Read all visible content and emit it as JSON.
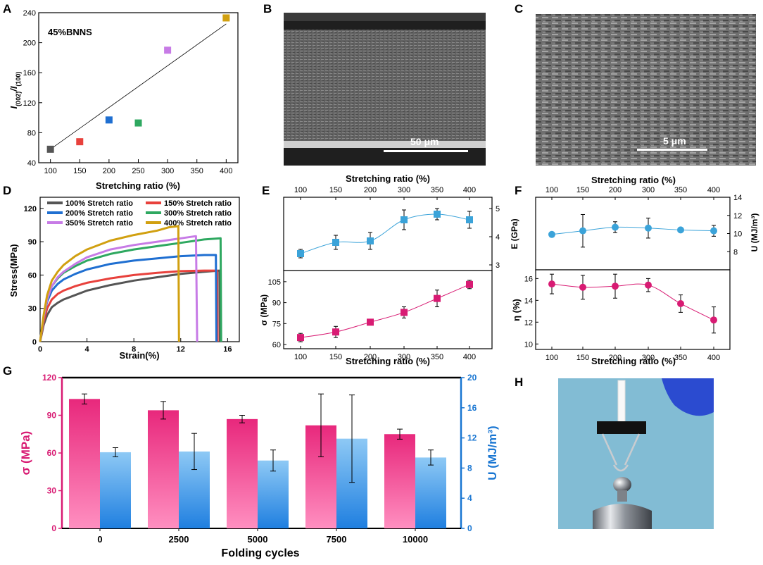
{
  "panel_labels": {
    "A": "A",
    "B": "B",
    "C": "C",
    "D": "D",
    "E": "E",
    "F": "F",
    "G": "G",
    "H": "H"
  },
  "colors": {
    "c100": "#555555",
    "c150": "#e8413c",
    "c200": "#1f6fd1",
    "c250": "#2ea860",
    "c300": "#2ea860",
    "c350": "#c77be6",
    "c400": "#d1a010",
    "e_top": "#3ba3d9",
    "pink": "#d81b73",
    "g_pink": "#e8287c",
    "g_blue": "#1f8fe0",
    "g_blue_axis": "#1976d2"
  },
  "sem_b": {
    "scale_label": "50 μm"
  },
  "sem_c": {
    "scale_label": "5 μm"
  },
  "photo_h": {
    "description_icon": "weight-hanging-photo"
  },
  "chart_data": [
    {
      "id": "A",
      "type": "scatter",
      "annotation": "45%BNNS",
      "xlabel": "Stretching ratio (%)",
      "ylabel": "I(002)/I(100)",
      "ylabel_main": "I",
      "ylabel_sub1": "(002)",
      "ylabel_slash": "/I",
      "ylabel_sub2": "(100)",
      "xlim": [
        80,
        420
      ],
      "ylim": [
        40,
        240
      ],
      "xticks": [
        100,
        150,
        200,
        250,
        300,
        350,
        400
      ],
      "xtick_labels": [
        "100",
        "150",
        "200",
        "250",
        "300",
        "350",
        "400"
      ],
      "yticks": [
        40,
        80,
        120,
        160,
        200,
        240
      ],
      "ytick_labels": [
        "40",
        "80",
        "120",
        "160",
        "200",
        "240"
      ],
      "points": [
        {
          "x": 100,
          "y": 58,
          "color": "#555555"
        },
        {
          "x": 150,
          "y": 68,
          "color": "#e8413c"
        },
        {
          "x": 200,
          "y": 97,
          "color": "#1f6fd1"
        },
        {
          "x": 250,
          "y": 93,
          "color": "#2ea860"
        },
        {
          "x": 300,
          "y": 190,
          "color": "#c77be6"
        },
        {
          "x": 400,
          "y": 233,
          "color": "#d1a010"
        }
      ],
      "fit_line": {
        "x": [
          100,
          400
        ],
        "y": [
          58,
          225
        ]
      }
    },
    {
      "id": "D",
      "type": "line",
      "xlabel": "Strain(%)",
      "ylabel": "Stress(MPa)",
      "xlim": [
        0,
        17
      ],
      "ylim": [
        0,
        130
      ],
      "xticks": [
        0,
        4,
        8,
        12,
        16
      ],
      "xtick_labels": [
        "0",
        "4",
        "8",
        "12",
        "16"
      ],
      "yticks": [
        0,
        30,
        60,
        90,
        120
      ],
      "ytick_labels": [
        "0",
        "30",
        "60",
        "90",
        "120"
      ],
      "series": [
        {
          "name": "100% Stretch ratio",
          "color": "#555555",
          "x": [
            0,
            0.3,
            0.6,
            1,
            1.5,
            2,
            3,
            4,
            6,
            8,
            10,
            12,
            14,
            15.3,
            15.35
          ],
          "y": [
            0,
            15,
            24,
            31,
            35,
            38,
            42,
            46,
            51,
            55,
            58,
            61,
            63,
            64,
            0
          ]
        },
        {
          "name": "150% Stretch ratio",
          "color": "#e8413c",
          "x": [
            0,
            0.3,
            0.6,
            1,
            1.5,
            2,
            3,
            4,
            6,
            8,
            10,
            12,
            14,
            15.1,
            15.15
          ],
          "y": [
            0,
            18,
            30,
            38,
            43,
            46,
            50,
            53,
            57,
            60,
            62,
            63.5,
            64,
            64,
            0
          ]
        },
        {
          "name": "200% Stretch ratio",
          "color": "#1f6fd1",
          "x": [
            0,
            0.3,
            0.6,
            1,
            1.5,
            2,
            3,
            4,
            6,
            8,
            10,
            12,
            14,
            15.0,
            15.05
          ],
          "y": [
            0,
            22,
            36,
            46,
            52,
            56,
            61,
            65,
            70,
            73,
            75,
            77,
            78,
            78,
            0
          ]
        },
        {
          "name": "300% Stretch ratio",
          "color": "#2ea860",
          "x": [
            0,
            0.3,
            0.6,
            1,
            1.5,
            2,
            3,
            4,
            6,
            8,
            10,
            12,
            14,
            15.4,
            15.45
          ],
          "y": [
            0,
            22,
            38,
            50,
            57,
            62,
            68,
            73,
            79,
            83,
            86,
            89,
            92,
            93,
            0
          ]
        },
        {
          "name": "350% Stretch ratio",
          "color": "#c77be6",
          "x": [
            0,
            0.3,
            0.6,
            1,
            1.5,
            2,
            3,
            4,
            6,
            8,
            10,
            12,
            13.3,
            13.4
          ],
          "y": [
            0,
            22,
            38,
            50,
            58,
            63,
            70,
            76,
            83,
            87,
            90,
            93,
            95,
            0
          ]
        },
        {
          "name": "400% Stretch ratio",
          "color": "#d1a010",
          "x": [
            0,
            0.3,
            0.6,
            1,
            1.5,
            2,
            3,
            4,
            6,
            8,
            10,
            11,
            11.8,
            11.85
          ],
          "y": [
            0,
            24,
            42,
            55,
            63,
            69,
            77,
            83,
            91,
            96,
            100,
            103,
            104,
            0
          ]
        }
      ]
    },
    {
      "id": "E_top",
      "type": "scatter",
      "top_xlabel": "Stretching ratio (%)",
      "ylabel": "E (GPa)",
      "xcats": [
        "100",
        "150",
        "200",
        "300",
        "350",
        "400"
      ],
      "ylim": [
        2.8,
        5.4
      ],
      "yticks": [
        3,
        4,
        5
      ],
      "ytick_labels": [
        "3",
        "4",
        "5"
      ],
      "values": [
        3.4,
        3.8,
        3.85,
        4.6,
        4.8,
        4.6
      ],
      "errors": [
        0.15,
        0.25,
        0.3,
        0.35,
        0.2,
        0.3
      ]
    },
    {
      "id": "E_bottom",
      "type": "scatter",
      "xlabel": "Stretching ratio (%)",
      "ylabel": "σ (MPa)",
      "xcats": [
        "100",
        "150",
        "200",
        "300",
        "350",
        "400"
      ],
      "ylim": [
        57,
        113
      ],
      "yticks": [
        60,
        75,
        90,
        105
      ],
      "ytick_labels": [
        "60",
        "75",
        "90",
        "105"
      ],
      "values": [
        65,
        69,
        76,
        83,
        93,
        103
      ],
      "errors": [
        3,
        4,
        2,
        4,
        6,
        3
      ]
    },
    {
      "id": "F_top",
      "type": "scatter",
      "top_xlabel": "Stretching ratio (%)",
      "ylabel": "U (MJ/m³)",
      "xcats": [
        "100",
        "150",
        "200",
        "300",
        "350",
        "400"
      ],
      "ylim": [
        6,
        14
      ],
      "yticks": [
        8,
        10,
        12,
        14
      ],
      "ytick_labels": [
        "8",
        "10",
        "12",
        "14"
      ],
      "values": [
        9.9,
        10.3,
        10.7,
        10.6,
        10.4,
        10.3
      ],
      "errors": [
        0.2,
        1.8,
        0.6,
        1.1,
        0.2,
        0.6
      ]
    },
    {
      "id": "F_bottom",
      "type": "scatter",
      "xlabel": "Stretching ratio (%)",
      "ylabel": "η (%)",
      "xcats": [
        "100",
        "150",
        "200",
        "300",
        "350",
        "400"
      ],
      "ylim": [
        9.5,
        16.8
      ],
      "yticks": [
        10,
        12,
        14,
        16
      ],
      "ytick_labels": [
        "10",
        "12",
        "14",
        "16"
      ],
      "values": [
        15.5,
        15.2,
        15.3,
        15.4,
        13.7,
        12.2
      ],
      "errors": [
        0.9,
        1.1,
        1.1,
        0.6,
        0.8,
        1.2
      ]
    },
    {
      "id": "G",
      "type": "bar",
      "xlabel": "Folding cycles",
      "ylabel_left": "σ (MPa)",
      "ylabel_right": "U (MJ/m³)",
      "categories": [
        "0",
        "2500",
        "5000",
        "7500",
        "10000"
      ],
      "ylim_left": [
        0,
        120
      ],
      "yticks_left": [
        0,
        30,
        60,
        90,
        120
      ],
      "ytick_labels_left": [
        "0",
        "30",
        "60",
        "90",
        "120"
      ],
      "ylim_right": [
        0,
        20
      ],
      "yticks_right": [
        0,
        4,
        8,
        12,
        16,
        20
      ],
      "ytick_labels_right": [
        "0",
        "4",
        "8",
        "12",
        "16",
        "20"
      ],
      "series": [
        {
          "name": "σ (MPa)",
          "axis": "left",
          "values": [
            103,
            94,
            87,
            82,
            75
          ],
          "errors": [
            4,
            7,
            3,
            25,
            4
          ]
        },
        {
          "name": "U (MJ/m³)",
          "axis": "right",
          "values": [
            10.1,
            10.2,
            9.0,
            11.9,
            9.4
          ],
          "errors": [
            0.6,
            2.4,
            1.4,
            5.8,
            1.0
          ]
        }
      ]
    }
  ]
}
